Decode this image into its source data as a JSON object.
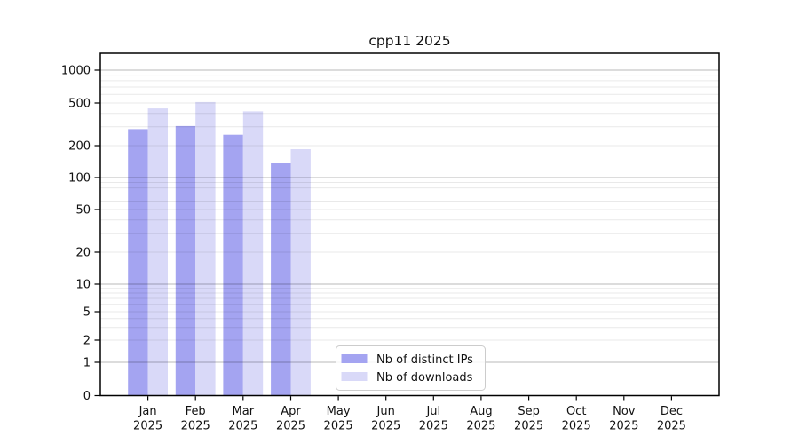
{
  "figure": {
    "title": "cpp11 2025",
    "background": "#ffffff"
  },
  "chart_data": {
    "type": "bar",
    "title": "cpp11 2025",
    "year": "2025",
    "months": [
      "Jan",
      "Feb",
      "Mar",
      "Apr",
      "May",
      "Jun",
      "Jul",
      "Aug",
      "Sep",
      "Oct",
      "Nov",
      "Dec"
    ],
    "categories": [
      "Jan 2025",
      "Feb 2025",
      "Mar 2025",
      "Apr 2025",
      "May 2025",
      "Jun 2025",
      "Jul 2025",
      "Aug 2025",
      "Sep 2025",
      "Oct 2025",
      "Nov 2025",
      "Dec 2025"
    ],
    "series": [
      {
        "name": "Nb of distinct IPs",
        "color": "#a4a4f1",
        "values": [
          285,
          305,
          253,
          136,
          null,
          null,
          null,
          null,
          null,
          null,
          null,
          null
        ]
      },
      {
        "name": "Nb of downloads",
        "color": "#d9d9f8",
        "values": [
          445,
          510,
          418,
          185,
          null,
          null,
          null,
          null,
          null,
          null,
          null,
          null
        ]
      }
    ],
    "y_axis": {
      "scale": "log-like (symlog)",
      "ticks": [
        0,
        1,
        2,
        5,
        10,
        20,
        50,
        100,
        200,
        500,
        1000
      ],
      "ylim": [
        0,
        1430
      ],
      "grid_major_at": [
        1,
        10,
        100,
        1000
      ],
      "grid_minor_at": [
        2,
        3,
        4,
        5,
        6,
        7,
        8,
        9,
        20,
        30,
        40,
        50,
        60,
        70,
        80,
        90,
        200,
        300,
        400,
        500,
        600,
        700,
        800,
        900
      ]
    },
    "x_axis": {
      "label_lines": 2
    },
    "legend": {
      "position": "inside-bottom-center",
      "entries": [
        "Nb of distinct IPs",
        "Nb of downloads"
      ]
    },
    "grid": "horizontal only, drawn over bars"
  },
  "colors": {
    "bar_distinct_ips": "#a4a4f1",
    "bar_downloads": "#d9d9f8",
    "grid_major": "rgba(0,0,0,0.28)",
    "grid_minor": "rgba(0,0,0,0.085)",
    "spine": "#000000",
    "text": "#111111",
    "legend_border": "#cccccc"
  }
}
